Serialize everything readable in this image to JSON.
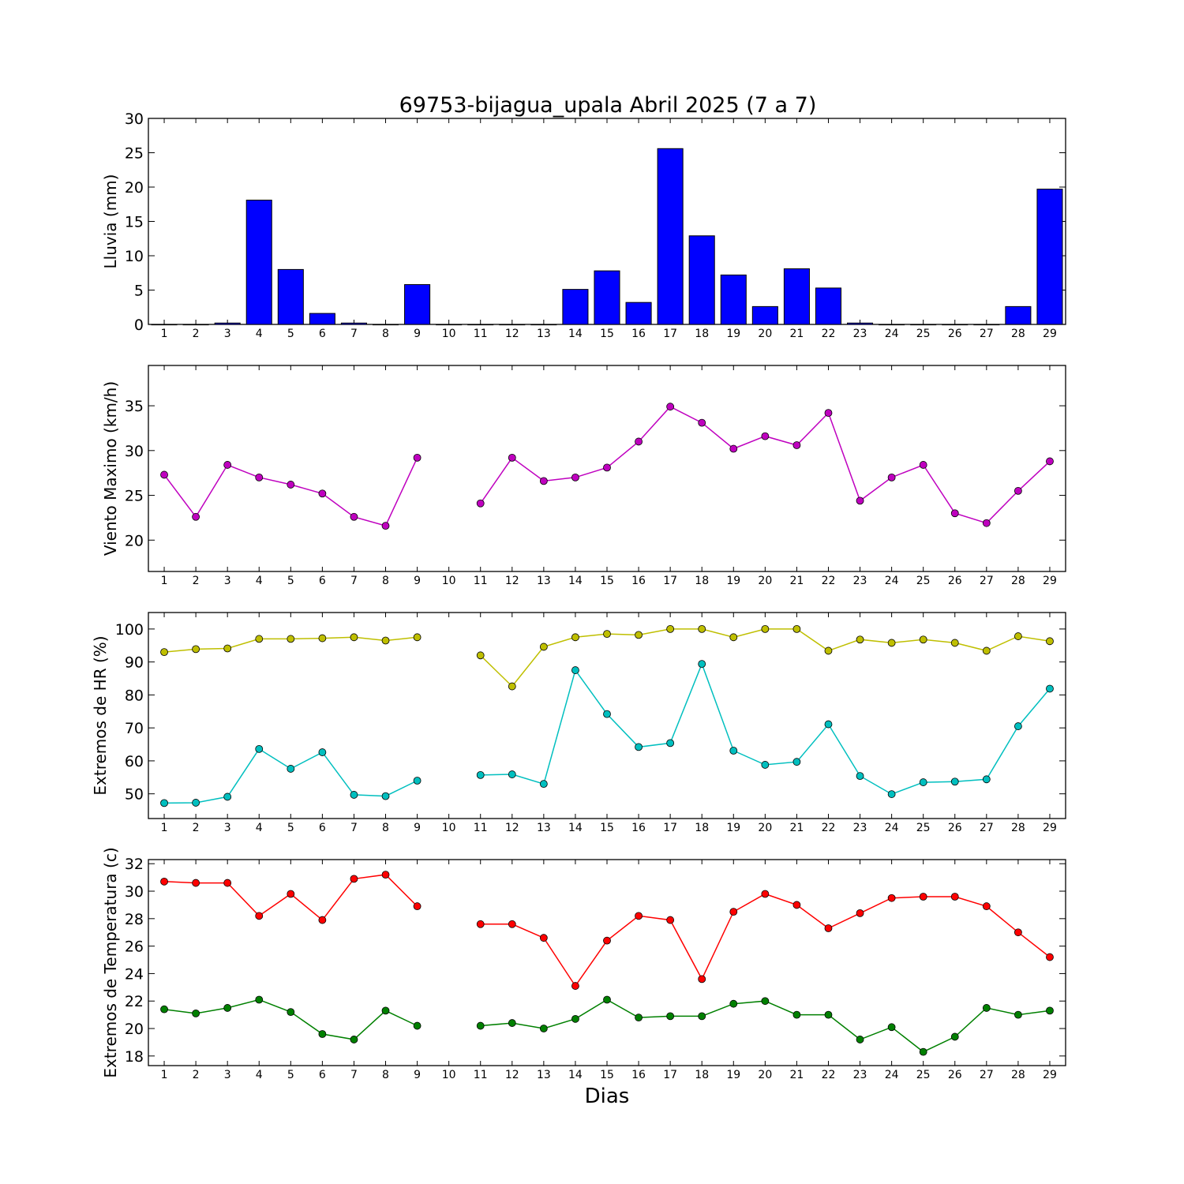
{
  "title": "69753-bijagua_upala Abril 2025  (7 a 7)",
  "xlabel": "Dias",
  "chart_data": [
    {
      "type": "bar",
      "ylabel": "Lluvia (mm)",
      "ylim": [
        0,
        30
      ],
      "yticks": [
        0,
        5,
        10,
        15,
        20,
        25,
        30
      ],
      "categories": [
        1,
        2,
        3,
        4,
        5,
        6,
        7,
        8,
        9,
        10,
        11,
        12,
        13,
        14,
        15,
        16,
        17,
        18,
        19,
        20,
        21,
        22,
        23,
        24,
        25,
        26,
        27,
        28,
        29
      ],
      "values": [
        0,
        0,
        0.2,
        18.1,
        8.0,
        1.6,
        0.2,
        0,
        5.8,
        0,
        0,
        0,
        0,
        5.1,
        7.8,
        3.2,
        25.6,
        12.9,
        7.2,
        2.6,
        8.1,
        5.3,
        0.2,
        0,
        0,
        0,
        0,
        2.6,
        19.7
      ],
      "colors": {
        "bar": "#0000ff"
      }
    },
    {
      "type": "line",
      "ylabel": "Viento Maximo (km/h)",
      "ylim": [
        16.5,
        39.5
      ],
      "yticks": [
        20,
        25,
        30,
        35
      ],
      "x": [
        1,
        2,
        3,
        4,
        5,
        6,
        7,
        8,
        9,
        10,
        11,
        12,
        13,
        14,
        15,
        16,
        17,
        18,
        19,
        20,
        21,
        22,
        23,
        24,
        25,
        26,
        27,
        28,
        29
      ],
      "series": [
        {
          "color": "#bf00bf",
          "values": [
            27.3,
            22.6,
            28.4,
            27.0,
            26.2,
            25.2,
            22.6,
            21.6,
            29.2,
            null,
            24.1,
            29.2,
            26.6,
            27.0,
            28.1,
            31.0,
            34.9,
            33.1,
            30.2,
            31.6,
            30.6,
            34.2,
            24.4,
            27.0,
            28.4,
            23.0,
            21.9,
            25.5,
            28.8
          ]
        }
      ]
    },
    {
      "type": "line",
      "ylabel": "Extremos de HR (%)",
      "ylim": [
        42.5,
        105
      ],
      "yticks": [
        50,
        60,
        70,
        80,
        90,
        100
      ],
      "x": [
        1,
        2,
        3,
        4,
        5,
        6,
        7,
        8,
        9,
        10,
        11,
        12,
        13,
        14,
        15,
        16,
        17,
        18,
        19,
        20,
        21,
        22,
        23,
        24,
        25,
        26,
        27,
        28,
        29
      ],
      "series": [
        {
          "color": "#bfbf00",
          "values": [
            93.0,
            93.9,
            94.1,
            97.0,
            97.0,
            97.2,
            97.5,
            96.5,
            97.5,
            null,
            92.0,
            82.6,
            94.6,
            97.5,
            98.5,
            98.2,
            100,
            100,
            97.5,
            100,
            100,
            93.4,
            96.8,
            95.8,
            96.8,
            95.8,
            93.4,
            97.8,
            96.3
          ]
        },
        {
          "color": "#00bfbf",
          "values": [
            47.2,
            47.3,
            49.1,
            63.6,
            57.6,
            62.6,
            49.7,
            49.3,
            54.0,
            null,
            55.7,
            55.9,
            53.0,
            87.5,
            74.2,
            64.2,
            65.4,
            89.4,
            63.1,
            58.8,
            59.7,
            71.1,
            55.4,
            49.9,
            53.5,
            53.7,
            54.4,
            70.5,
            81.9
          ]
        }
      ]
    },
    {
      "type": "line",
      "ylabel": "Extremos de Temperatura (c)",
      "ylim": [
        17.3,
        32.3
      ],
      "yticks": [
        18,
        20,
        22,
        24,
        26,
        28,
        30,
        32
      ],
      "x": [
        1,
        2,
        3,
        4,
        5,
        6,
        7,
        8,
        9,
        10,
        11,
        12,
        13,
        14,
        15,
        16,
        17,
        18,
        19,
        20,
        21,
        22,
        23,
        24,
        25,
        26,
        27,
        28,
        29
      ],
      "series": [
        {
          "color": "#ff0000",
          "values": [
            30.7,
            30.6,
            30.6,
            28.2,
            29.8,
            27.9,
            30.9,
            31.2,
            28.9,
            null,
            27.6,
            27.6,
            26.6,
            23.1,
            26.4,
            28.2,
            27.9,
            23.6,
            28.5,
            29.8,
            29.0,
            27.3,
            28.4,
            29.5,
            29.6,
            29.6,
            28.9,
            27.0,
            25.2
          ]
        },
        {
          "color": "#008000",
          "values": [
            21.4,
            21.1,
            21.5,
            22.1,
            21.2,
            19.6,
            19.2,
            21.3,
            20.2,
            null,
            20.2,
            20.4,
            20.0,
            20.7,
            22.1,
            20.8,
            20.9,
            20.9,
            21.8,
            22.0,
            21.0,
            21.0,
            19.2,
            20.1,
            18.3,
            19.4,
            21.5,
            21.0,
            21.3
          ]
        }
      ]
    }
  ]
}
